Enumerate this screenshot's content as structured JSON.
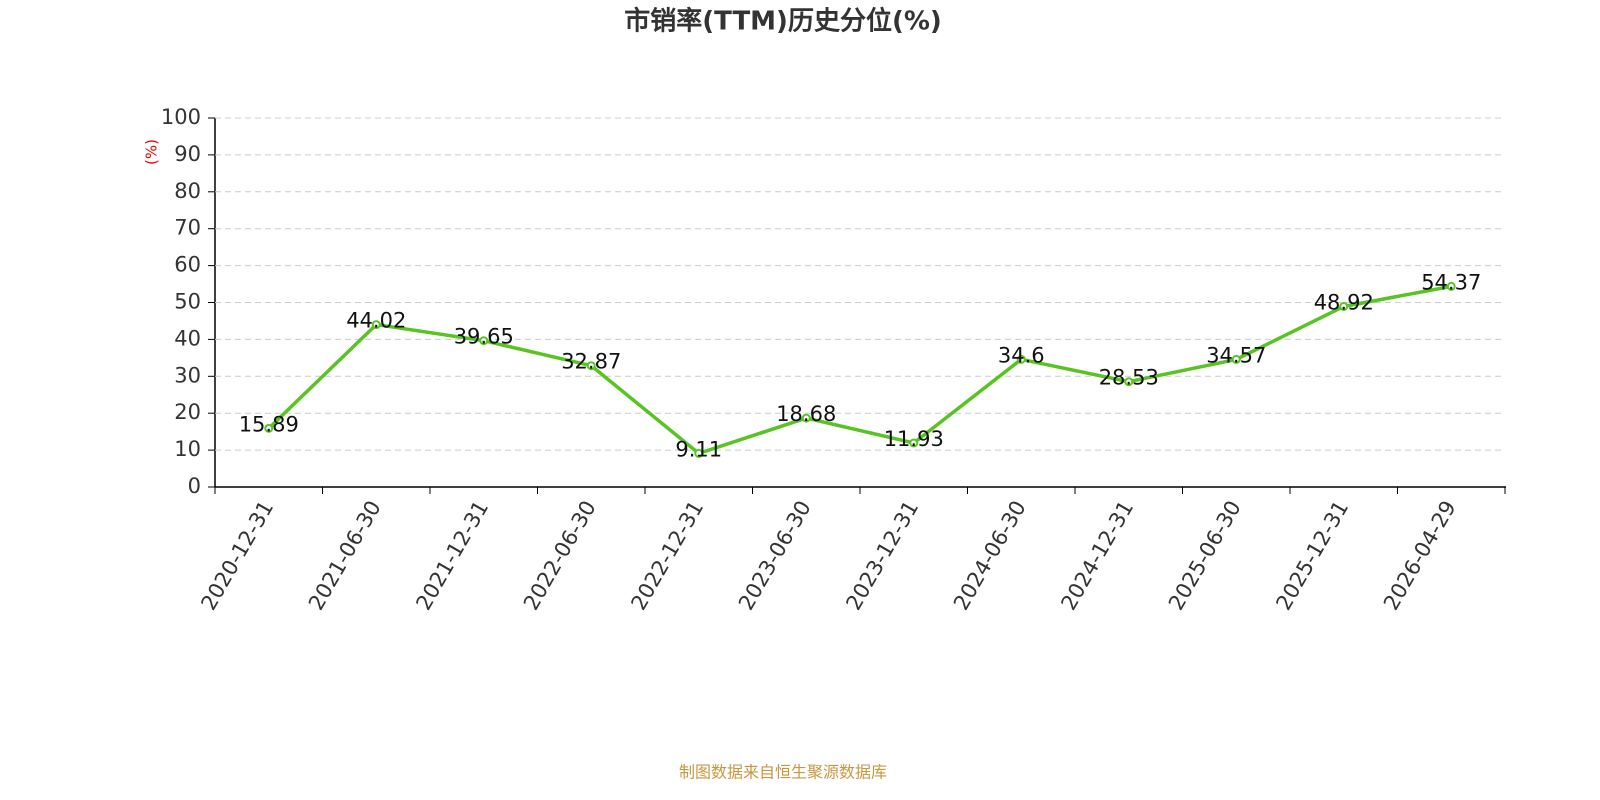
{
  "chart_data": {
    "type": "line",
    "title": "市销率(TTM)历史分位(%)",
    "ylabel": "(%)",
    "categories": [
      "2020-12-31",
      "2021-06-30",
      "2021-12-31",
      "2022-06-30",
      "2022-12-31",
      "2023-06-30",
      "2023-12-31",
      "2024-06-30",
      "2024-12-31",
      "2025-06-30",
      "2025-12-31",
      "2026-04-29"
    ],
    "values": [
      15.89,
      44.02,
      39.65,
      32.87,
      9.11,
      18.68,
      11.93,
      34.6,
      28.53,
      34.57,
      48.92,
      54.37
    ],
    "color": "#58c422",
    "ylim": [
      0,
      100
    ],
    "yticks": [
      0,
      10,
      20,
      30,
      40,
      50,
      60,
      70,
      80,
      90,
      100
    ],
    "grid": true
  },
  "source": "制图数据来自恒生聚源数据库"
}
